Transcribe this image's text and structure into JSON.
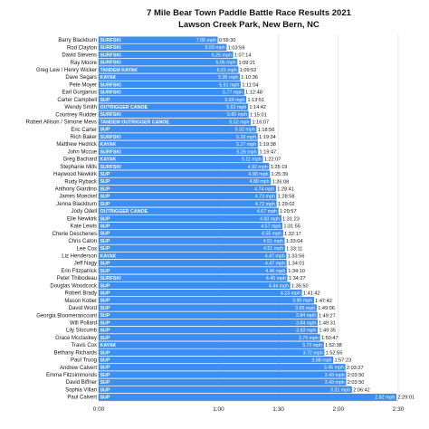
{
  "colors": {
    "bar": "#3b8ef3",
    "bar_stroke": "#2a6fc9",
    "grid": "#d8d8d8"
  },
  "chart_data": {
    "type": "bar",
    "orientation": "horizontal",
    "title": "7 Mile Bear Town Paddle Battle Race Results 2021",
    "subtitle": "Lawson Creek Park, New Bern, NC",
    "xlabel": "",
    "ylabel": "",
    "xlim": [
      "0:00",
      "2:30"
    ],
    "xlim_minutes": [
      0,
      150
    ],
    "x_ticks": [
      "0:00",
      "1:00",
      "1:30",
      "2:00",
      "2:30"
    ],
    "x_tick_minutes": [
      0,
      60,
      90,
      120,
      150
    ],
    "grid": true,
    "legend": "none",
    "rows": [
      {
        "name": "Barry Blackburn",
        "class": "SURFSKI",
        "speed": "7.06 mph",
        "time": "0:59:30"
      },
      {
        "name": "Rod Clayton",
        "class": "SURFSKI",
        "speed": "6.59 mph",
        "time": "1:03:59"
      },
      {
        "name": "David Stevens",
        "class": "SURFSKI",
        "speed": "6.25 mph",
        "time": "1:07:14"
      },
      {
        "name": "Ray Moore",
        "class": "SURFSKI",
        "speed": "6.06 mph",
        "time": "1:09:21"
      },
      {
        "name": "Greg Lew / Henry Wicker",
        "class": "TANDEM KAYAK",
        "speed": "6.01 mph",
        "time": "1:09:52"
      },
      {
        "name": "Dave Segars",
        "class": "KAYAK",
        "speed": "5.95 mph",
        "time": "1:10:36"
      },
      {
        "name": "Pete Moyer",
        "class": "SURFSKI",
        "speed": "5.91 mph",
        "time": "1:11:04"
      },
      {
        "name": "Earl Gurganus",
        "class": "SURFSKI",
        "speed": "5.77 mph",
        "time": "1:12:48"
      },
      {
        "name": "Carter Campbell",
        "class": "SUP",
        "speed": "5.69 mph",
        "time": "1:13:51"
      },
      {
        "name": "Wendy Smith",
        "class": "OUTRIGGER CANOE",
        "speed": "5.62 mph",
        "time": "1:14:42"
      },
      {
        "name": "Courtney Rudder",
        "class": "SURFSKI",
        "speed": "5.60 mph",
        "time": "1:15:01"
      },
      {
        "name": "Robert Allison / Simone Mevs",
        "class": "TANDEM OUTRIGGER CANOE",
        "speed": "5.52 mph",
        "time": "1:16:07"
      },
      {
        "name": "Eric Carter",
        "class": "SUP",
        "speed": "5.32 mph",
        "time": "1:18:56"
      },
      {
        "name": "Rich Baker",
        "class": "SURFSKI",
        "speed": "5.28 mph",
        "time": "1:19:34"
      },
      {
        "name": "Matthew Hedrick",
        "class": "KAYAK",
        "speed": "5.27 mph",
        "time": "1:19:38"
      },
      {
        "name": "John Mccue",
        "class": "SURFSKI",
        "speed": "5.26 mph",
        "time": "1:19:47"
      },
      {
        "name": "Greg Bachard",
        "class": "KAYAK",
        "speed": "5.11 mph",
        "time": "1:22:07"
      },
      {
        "name": "Stephanie Mills",
        "class": "SURFSKI",
        "speed": "4.92 mph",
        "time": "1:25:19"
      },
      {
        "name": "Haywood Newkirk",
        "class": "SUP",
        "speed": "4.90 mph",
        "time": "1:25:39"
      },
      {
        "name": "Rudy Ryback",
        "class": "SUP",
        "speed": "4.88 mph",
        "time": "1:26:08"
      },
      {
        "name": "Anthony Giardino",
        "class": "SUP",
        "speed": "4.74 mph",
        "time": "1:28:41"
      },
      {
        "name": "James Moeckel",
        "class": "SUP",
        "speed": "4.73 mph",
        "time": "1:28:58"
      },
      {
        "name": "Jenna Blackburn",
        "class": "SUP",
        "speed": "4.72 mph",
        "time": "1:29:02"
      },
      {
        "name": "Jody Odell",
        "class": "OUTRIGGER CANOE",
        "speed": "4.67 mph",
        "time": "1:29:57"
      },
      {
        "name": "Elle Newkirk",
        "class": "SUP",
        "speed": "4.60 mph",
        "time": "1:31:23"
      },
      {
        "name": "Kate Lewis",
        "class": "SUP",
        "speed": "4.57 mph",
        "time": "1:31:55"
      },
      {
        "name": "Cherie Deschenes",
        "class": "SUP",
        "speed": "4.55 mph",
        "time": "1:32:17"
      },
      {
        "name": "Chris Caton",
        "class": "SUP",
        "speed": "4.51 mph",
        "time": "1:33:04"
      },
      {
        "name": "Lee Cox",
        "class": "SUP",
        "speed": "4.51 mph",
        "time": "1:33:11"
      },
      {
        "name": "Liz Henderson",
        "class": "KAYAK",
        "speed": "4.47 mph",
        "time": "1:33:56"
      },
      {
        "name": "Jeff Nagy",
        "class": "SUP",
        "speed": "4.47 mph",
        "time": "1:34:01"
      },
      {
        "name": "Erin Fitzpatrick",
        "class": "SUP",
        "speed": "4.46 mph",
        "time": "1:34:10"
      },
      {
        "name": "Peter Thibodeau",
        "class": "SURFSKI",
        "speed": "4.45 mph",
        "time": "1:34:27"
      },
      {
        "name": "Douglas Woodcock",
        "class": "SUP",
        "speed": "4.44 mph",
        "time": "1:35:50"
      },
      {
        "name": "Robert Brady",
        "class": "SUP",
        "speed": "4.13 mph",
        "time": "1:41:42"
      },
      {
        "name": "Mason Kober",
        "class": "SUP",
        "speed": "3.90 mph",
        "time": "1:47:42"
      },
      {
        "name": "David Word",
        "class": "SUP",
        "speed": "3.85 mph",
        "time": "1:49:06"
      },
      {
        "name": "Georgia Bloomerancount",
        "class": "SUP",
        "speed": "3.84 mph",
        "time": "1:49:27"
      },
      {
        "name": "Will Pollard",
        "class": "SUP",
        "speed": "3.84 mph",
        "time": "1:49:31"
      },
      {
        "name": "Lily Slocumb",
        "class": "SUP",
        "speed": "3.83 mph",
        "time": "1:49:35"
      },
      {
        "name": "Grace Mcclaskey",
        "class": "SUP",
        "speed": "3.79 mph",
        "time": "1:50:47"
      },
      {
        "name": "Travis Cox",
        "class": "KAYAK",
        "speed": "3.73 mph",
        "time": "1:52:38"
      },
      {
        "name": "Bethany Richards",
        "class": "SUP",
        "speed": "3.72 mph",
        "time": "1:52:55"
      },
      {
        "name": "Paul Truog",
        "class": "SUP",
        "speed": "3.58 mph",
        "time": "1:57:23"
      },
      {
        "name": "Andrew Calvert",
        "class": "SUP",
        "speed": "3.45 mph",
        "time": "2:03:27"
      },
      {
        "name": "Emma Fitzsimmonds",
        "class": "SUP",
        "speed": "3.43 mph",
        "time": "2:03:50"
      },
      {
        "name": "David Biffner",
        "class": "SUP",
        "speed": "3.43 mph",
        "time": "2:03:50"
      },
      {
        "name": "Sophia Villari",
        "class": "SUP",
        "speed": "3.31 mph",
        "time": "2:06:42"
      },
      {
        "name": "Paul Calvert",
        "class": "SUP",
        "speed": "2.82 mph",
        "time": "2:29:01"
      }
    ]
  }
}
